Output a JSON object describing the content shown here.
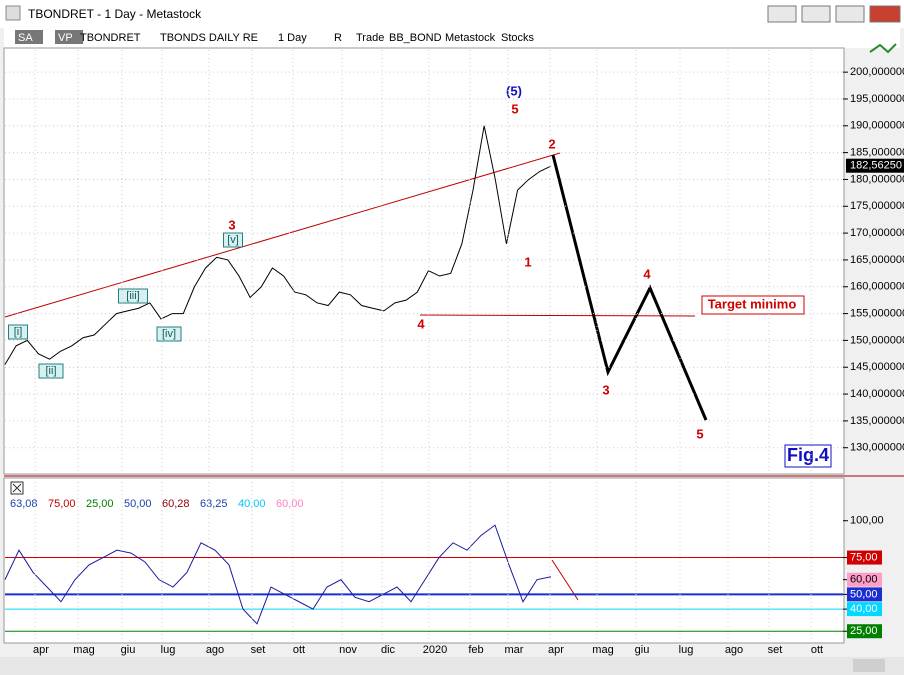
{
  "window": {
    "title": "TBONDRET - 1 Day - Metastock"
  },
  "toolbar": {
    "items": [
      "SA",
      "VP",
      "TBONDRET",
      "TBONDS DAILY RE",
      "1 Day",
      "R",
      "Trade",
      "BB_BOND",
      "Metastock",
      "Stocks"
    ]
  },
  "price_pane": {
    "ylim": [
      125.1,
      204.5
    ],
    "yticks": [
      {
        "value": 130,
        "label": "130,000000"
      },
      {
        "value": 135,
        "label": "135,000000"
      },
      {
        "value": 140,
        "label": "140,000000"
      },
      {
        "value": 145,
        "label": "145,000000"
      },
      {
        "value": 150,
        "label": "150,000000"
      },
      {
        "value": 155,
        "label": "155,000000"
      },
      {
        "value": 160,
        "label": "160,000000"
      },
      {
        "value": 165,
        "label": "165,000000"
      },
      {
        "value": 170,
        "label": "170,000000"
      },
      {
        "value": 175,
        "label": "175,000000"
      },
      {
        "value": 180,
        "label": "180,000000"
      },
      {
        "value": 185,
        "label": "185,000000"
      },
      {
        "value": 190,
        "label": "190,000000"
      },
      {
        "value": 195,
        "label": "195,000000"
      },
      {
        "value": 200,
        "label": "200,000000"
      }
    ],
    "last_price": {
      "value": 182.5625,
      "label": "182,56250"
    },
    "color": "#000000",
    "values": [
      145.5,
      149,
      150,
      147.5,
      146.5,
      148,
      149,
      150.5,
      151,
      153,
      155,
      155.5,
      156,
      157,
      154,
      155,
      155,
      160,
      163.5,
      165.5,
      165,
      162,
      158,
      160,
      163.5,
      162,
      159,
      158.5,
      157,
      156.5,
      159,
      158.5,
      156.5,
      156,
      155.5,
      157,
      157.5,
      159,
      163,
      162,
      162.5,
      168,
      178,
      190,
      180,
      168,
      178,
      180,
      181.5,
      182.5
    ],
    "annotations": [
      "(5)",
      "5",
      "2",
      "3",
      "1",
      "4",
      "4",
      "3",
      "5",
      "[i]",
      "[ii]",
      "[iii]",
      "[iv]",
      "[v]",
      "Target minimo",
      "Fig.4"
    ]
  },
  "indicator_pane": {
    "ylim": [
      17,
      129
    ],
    "legend": [
      {
        "label": "63,08",
        "color": "#1a3fb0"
      },
      {
        "label": "75,00",
        "color": "#c00000"
      },
      {
        "label": "25,00",
        "color": "#008000"
      },
      {
        "label": "50,00",
        "color": "#1a3fb0"
      },
      {
        "label": "60,28",
        "color": "#8b0000"
      },
      {
        "label": "63,25",
        "color": "#1a3fb0"
      },
      {
        "label": "40,00",
        "color": "#00c8ff"
      },
      {
        "label": "60,00",
        "color": "#ff80c0"
      }
    ],
    "yticks": [
      {
        "value": 100,
        "label": "100,00"
      },
      {
        "value": 75,
        "label": "75,00",
        "color": "#d00000"
      },
      {
        "value": 60,
        "label": "60,00",
        "color": "#ff9ec8"
      },
      {
        "value": 50,
        "label": "50,00",
        "color": "#1a2fd0"
      },
      {
        "value": 40,
        "label": "40,00",
        "color": "#00d8ff"
      },
      {
        "value": 25,
        "label": "25,00",
        "color": "#008000"
      }
    ],
    "levels": [
      {
        "value": 75,
        "color": "#d00000"
      },
      {
        "value": 50,
        "color": "#1a2fd0"
      },
      {
        "value": 40,
        "color": "#00d8ff"
      },
      {
        "value": 25,
        "color": "#008000"
      }
    ],
    "color": "#1a1aa0",
    "values": [
      60,
      80,
      65,
      55,
      45,
      60,
      70,
      75,
      80,
      78,
      72,
      60,
      55,
      65,
      85,
      80,
      70,
      40,
      30,
      55,
      50,
      45,
      40,
      55,
      60,
      48,
      45,
      50,
      55,
      45,
      60,
      75,
      85,
      80,
      90,
      97,
      70,
      45,
      60,
      62
    ]
  },
  "months": [
    "apr",
    "mag",
    "giu",
    "lug",
    "ago",
    "set",
    "ott",
    "nov",
    "dic",
    "2020",
    "feb",
    "mar",
    "apr",
    "mag",
    "giu",
    "lug",
    "ago",
    "set",
    "ott"
  ]
}
